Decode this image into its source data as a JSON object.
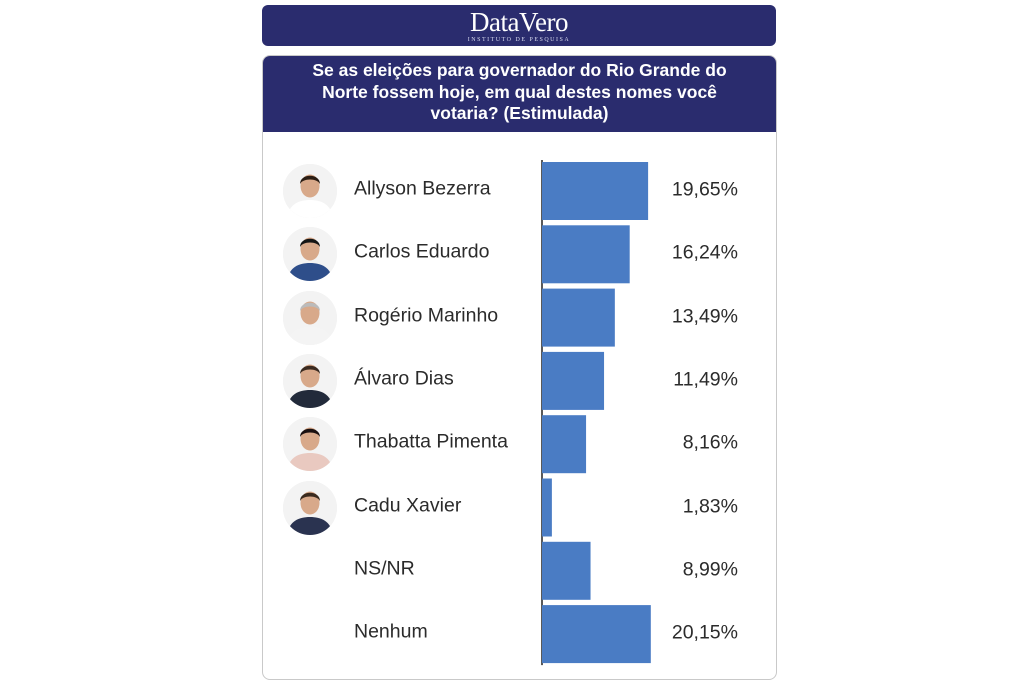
{
  "header": {
    "brand": "DataVero",
    "brand_sub": "INSTITUTO DE PESQUISA"
  },
  "chart_data": {
    "type": "bar",
    "orientation": "horizontal",
    "title": "Se as eleições para governador do Rio Grande do Norte fossem hoje, em qual destes nomes você votaria? (Estimulada)",
    "categories": [
      "Allyson Bezerra",
      "Carlos Eduardo",
      "Rogério Marinho",
      "Álvaro Dias",
      "Thabatta Pimenta",
      "Cadu Xavier",
      "NS/NR",
      "Nenhum"
    ],
    "values": [
      19.65,
      16.24,
      13.49,
      11.49,
      8.16,
      1.83,
      8.99,
      20.15
    ],
    "value_labels": [
      "19,65%",
      "16,24%",
      "13,49%",
      "11,49%",
      "8,16%",
      "1,83%",
      "8,99%",
      "20,15%"
    ],
    "has_photo": [
      true,
      true,
      true,
      true,
      true,
      true,
      false,
      false
    ],
    "xlabel": "",
    "ylabel": "",
    "grid": false,
    "legend": "none",
    "bar_color": "#4a7cc4"
  },
  "colors": {
    "header_bg": "#2a2c6e",
    "bar": "#4a7cc4",
    "axis": "#222222"
  }
}
